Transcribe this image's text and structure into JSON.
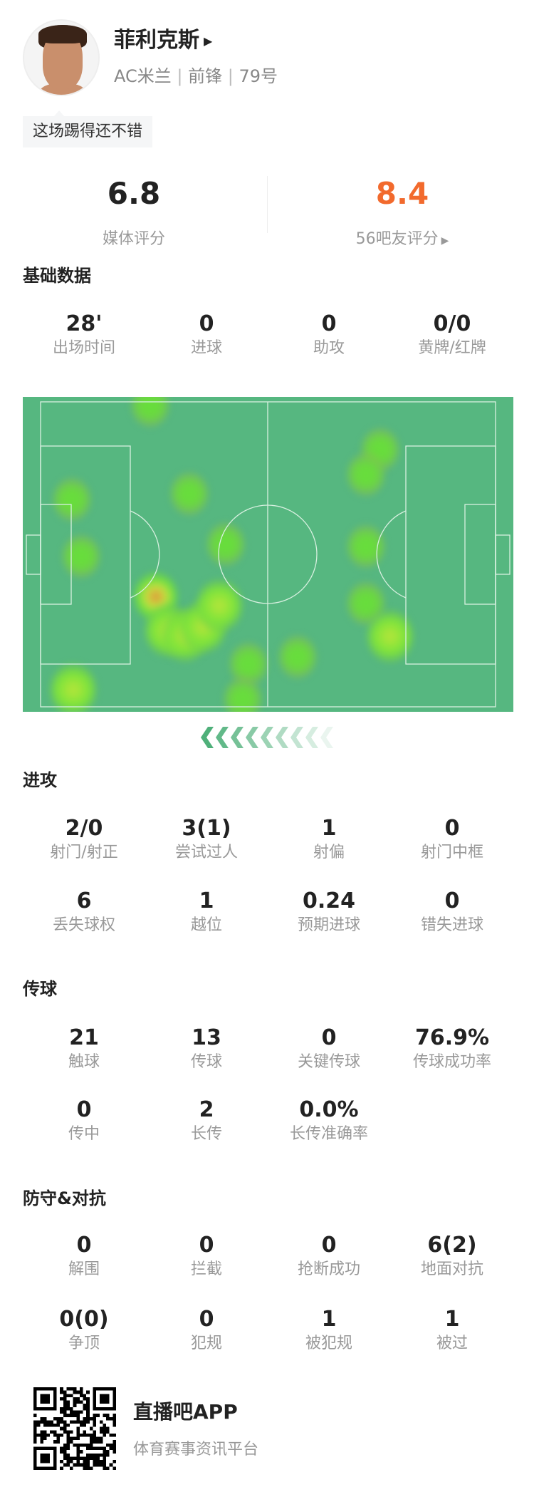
{
  "player": {
    "name": "菲利克斯",
    "team": "AC米兰",
    "position": "前锋",
    "number": "79号",
    "comment": "这场踢得还不错"
  },
  "ratings": {
    "media": {
      "value": "6.8",
      "label": "媒体评分"
    },
    "fans": {
      "value": "8.4",
      "label": "56吧友评分",
      "color": "#f26a2d"
    }
  },
  "sections": [
    {
      "title": "基础数据",
      "rows": [
        [
          {
            "v": "28'",
            "l": "出场时间"
          },
          {
            "v": "0",
            "l": "进球"
          },
          {
            "v": "0",
            "l": "助攻"
          },
          {
            "v": "0/0",
            "l": "黄牌/红牌"
          }
        ]
      ]
    },
    {
      "title": "进攻",
      "rows": [
        [
          {
            "v": "2/0",
            "l": "射门/射正"
          },
          {
            "v": "3(1)",
            "l": "尝试过人"
          },
          {
            "v": "1",
            "l": "射偏"
          },
          {
            "v": "0",
            "l": "射门中框"
          }
        ],
        [
          {
            "v": "6",
            "l": "丢失球权"
          },
          {
            "v": "1",
            "l": "越位"
          },
          {
            "v": "0.24",
            "l": "预期进球"
          },
          {
            "v": "0",
            "l": "错失进球"
          }
        ]
      ]
    },
    {
      "title": "传球",
      "rows": [
        [
          {
            "v": "21",
            "l": "触球"
          },
          {
            "v": "13",
            "l": "传球"
          },
          {
            "v": "0",
            "l": "关键传球"
          },
          {
            "v": "76.9%",
            "l": "传球成功率"
          }
        ],
        [
          {
            "v": "0",
            "l": "传中"
          },
          {
            "v": "2",
            "l": "长传"
          },
          {
            "v": "0.0%",
            "l": "长传准确率"
          }
        ]
      ]
    },
    {
      "title": "防守&对抗",
      "rows": [
        [
          {
            "v": "0",
            "l": "解围"
          },
          {
            "v": "0",
            "l": "拦截"
          },
          {
            "v": "0",
            "l": "抢断成功"
          },
          {
            "v": "6(2)",
            "l": "地面对抗"
          }
        ],
        [
          {
            "v": "0(0)",
            "l": "争顶"
          },
          {
            "v": "0",
            "l": "犯规"
          },
          {
            "v": "1",
            "l": "被犯规"
          },
          {
            "v": "1",
            "l": "被过"
          }
        ]
      ]
    }
  ],
  "heatmap": {
    "pitch_color": "#56b780",
    "line_color": "#d8f0e0",
    "attack_direction": "left"
  },
  "footer": {
    "app_name": "直播吧APP",
    "tagline": "体育赛事资讯平台"
  },
  "icons": {
    "name_arrow": "triangle-right-icon",
    "fans_arrow": "triangle-right-icon",
    "direction": "chevron-left-icon"
  }
}
